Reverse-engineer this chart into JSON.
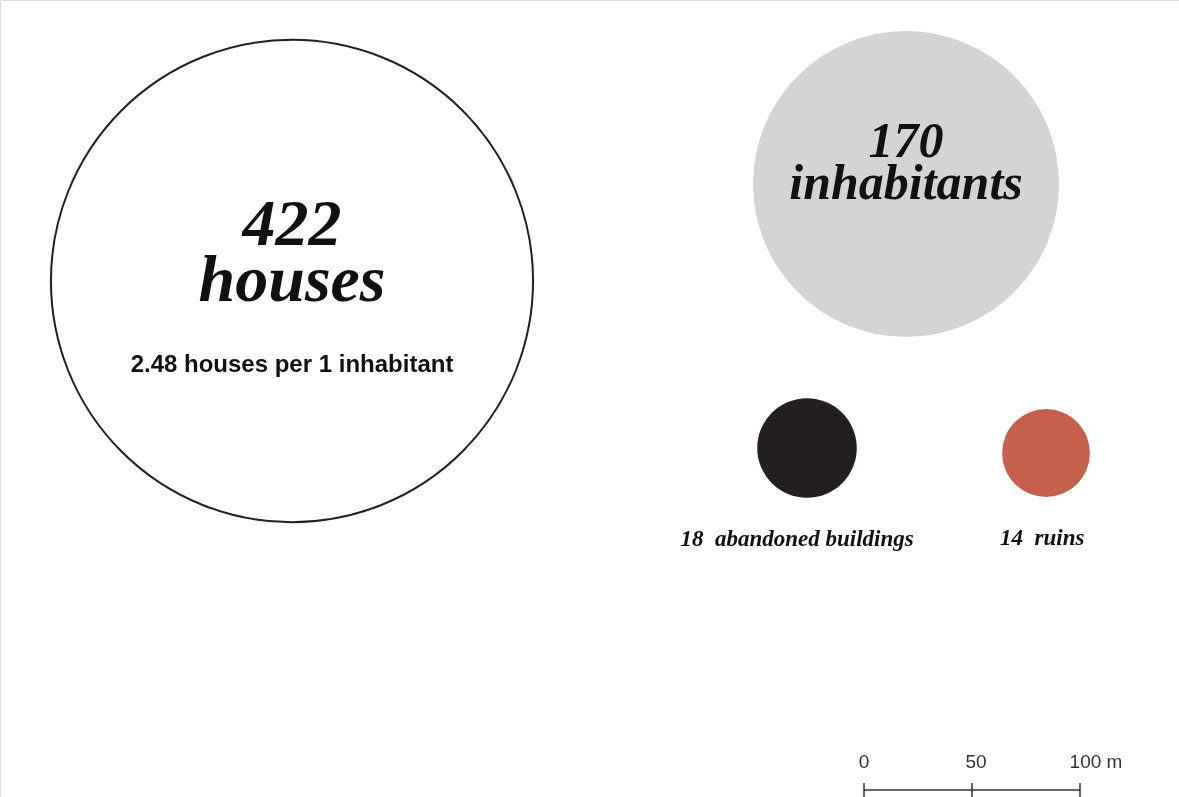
{
  "chart_data": {
    "type": "other",
    "categories": [
      "houses",
      "inhabitants",
      "abandoned buildings",
      "ruins"
    ],
    "values": [
      422,
      170,
      18,
      14
    ],
    "data_labels": true,
    "colors": [
      "#ffffff",
      "#d4d4d4",
      "#231f20",
      "#c4604b"
    ],
    "annotations": [
      "2.48 houses per 1 inhabitant",
      "0",
      "50",
      "100 m"
    ]
  }
}
